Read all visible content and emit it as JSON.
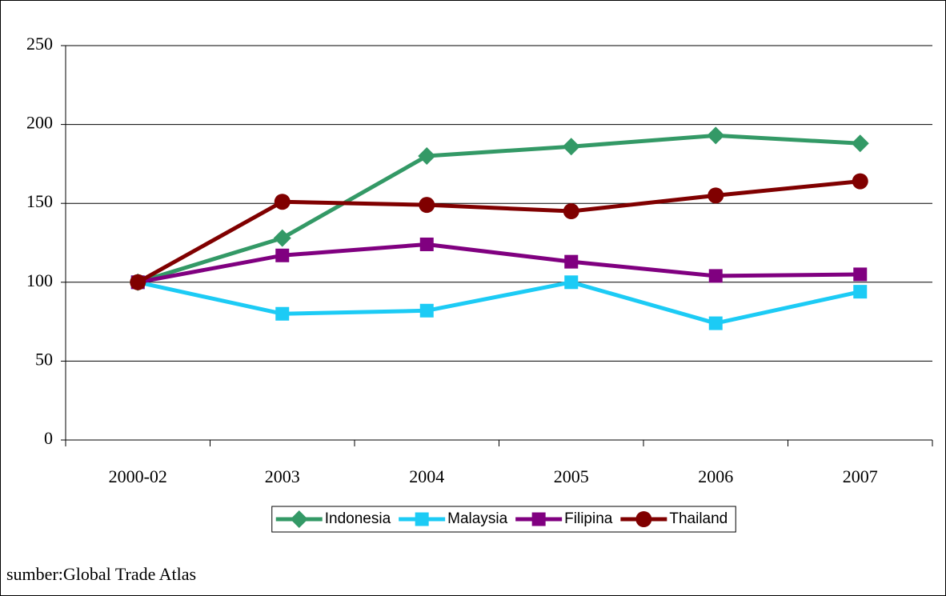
{
  "chart_data": {
    "type": "line",
    "categories": [
      "2000-02",
      "2003",
      "2004",
      "2005",
      "2006",
      "2007"
    ],
    "series": [
      {
        "name": "Indonesia",
        "color": "#339966",
        "marker": "diamond",
        "values": [
          100,
          128,
          180,
          186,
          193,
          188
        ]
      },
      {
        "name": "Malaysia",
        "color": "#1ccbf5",
        "marker": "square",
        "values": [
          100,
          80,
          82,
          100,
          74,
          94
        ]
      },
      {
        "name": "Filipina",
        "color": "#800080",
        "marker": "square",
        "values": [
          100,
          117,
          124,
          113,
          104,
          105
        ]
      },
      {
        "name": "Thailand",
        "color": "#800000",
        "marker": "circle",
        "values": [
          100,
          151,
          149,
          145,
          155,
          164
        ]
      }
    ],
    "ylim": [
      0,
      250
    ],
    "yticks": [
      0,
      50,
      100,
      150,
      200,
      250
    ],
    "grid": true,
    "legend": "bottom",
    "source": "sumber:Global Trade Atlas"
  }
}
